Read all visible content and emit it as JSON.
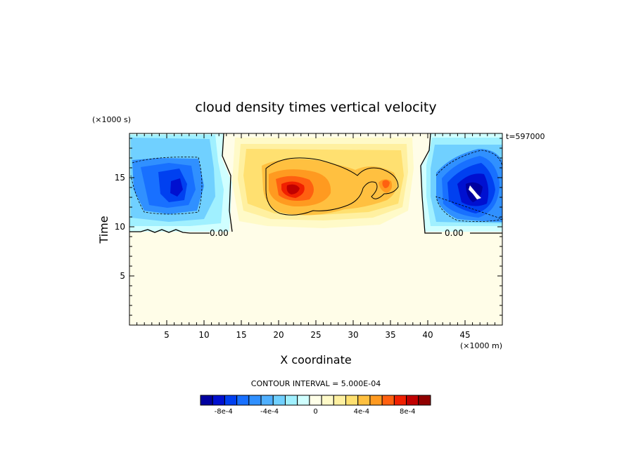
{
  "chart_data": {
    "type": "heatmap",
    "title": "cloud density times vertical velocity",
    "xlabel": "X coordinate",
    "ylabel": "Time",
    "x_unit": "(×1000 m)",
    "y_unit": "(×1000 s)",
    "time_stamp": "t=597000",
    "xlim": [
      0,
      50
    ],
    "ylim": [
      0,
      19.5
    ],
    "x_ticks": [
      5,
      10,
      15,
      20,
      25,
      30,
      35,
      40,
      45
    ],
    "y_ticks": [
      5,
      10,
      15
    ],
    "contour_interval_text": "CONTOUR INTERVAL = 5.000E-04",
    "zero_contour_labels": [
      "0.00",
      "0.00"
    ],
    "colorbar": {
      "min": -0.001,
      "max": 0.001,
      "colors": [
        "#0000a0",
        "#0010d0",
        "#0040f0",
        "#1870ff",
        "#3090ff",
        "#50b0ff",
        "#70d0ff",
        "#a0f0ff",
        "#d0ffff",
        "#ffffe8",
        "#fffac8",
        "#fff0a0",
        "#ffe070",
        "#ffc040",
        "#ff9a20",
        "#ff6010",
        "#f02000",
        "#c00000",
        "#900000"
      ],
      "tick_labels": [
        "-8e-4",
        "-4e-4",
        "0",
        "4e-4",
        "8e-4"
      ],
      "tick_values": [
        -0.0008,
        -0.0004,
        0,
        0.0004,
        0.0008
      ]
    },
    "features": [
      {
        "kind": "negative",
        "x": 7,
        "y": 15.5,
        "peak": -0.0008
      },
      {
        "kind": "positive",
        "x": 22,
        "y": 14,
        "peak": 0.0009
      },
      {
        "kind": "positive",
        "x": 34.5,
        "y": 14.5,
        "peak": 0.0006
      },
      {
        "kind": "negative",
        "x": 46,
        "y": 14.5,
        "peak": -0.001
      }
    ]
  }
}
